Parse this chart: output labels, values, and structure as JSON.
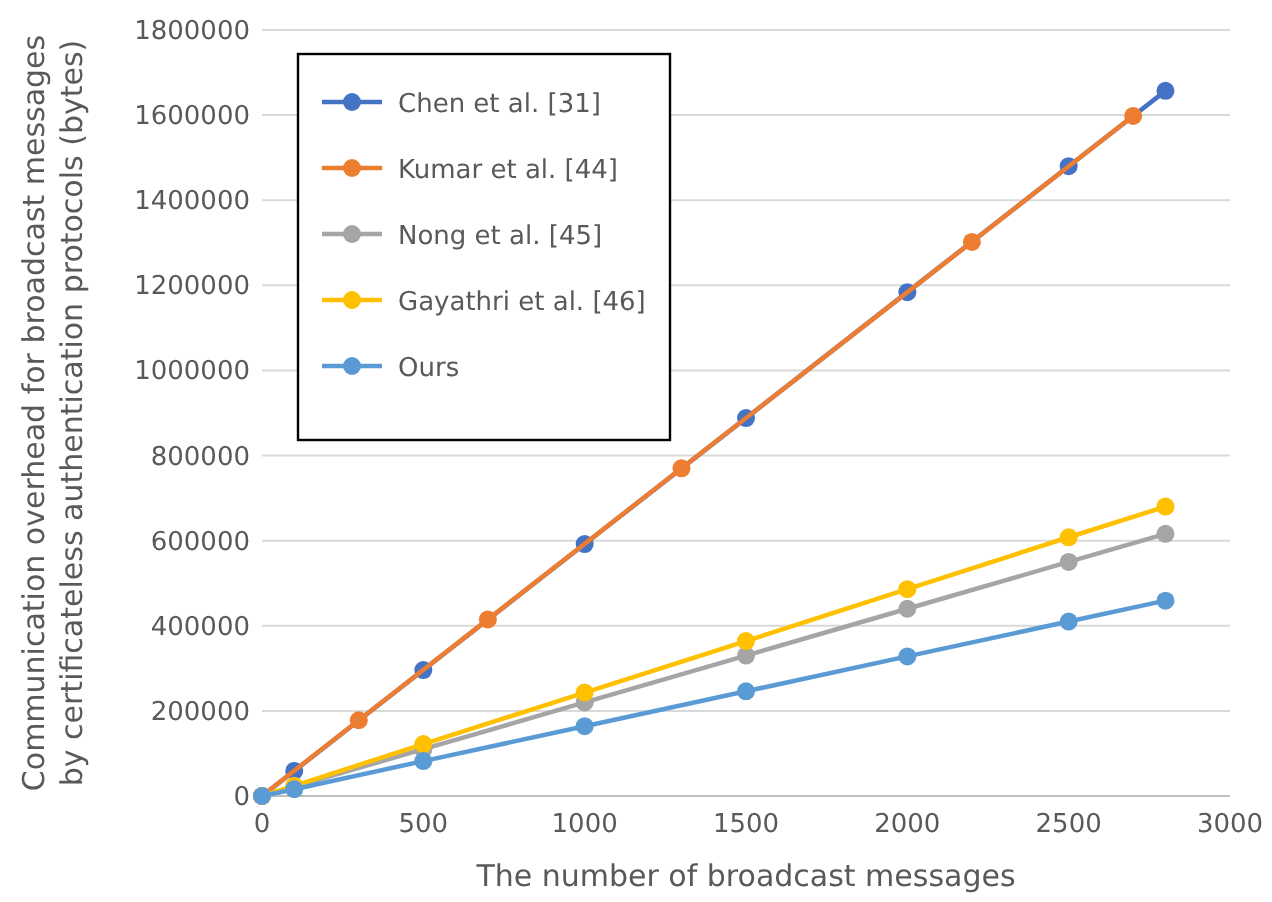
{
  "chart_data": {
    "type": "line",
    "xlabel": "The number of broadcast messages",
    "ylabel": "Communication overhead for broadcast messages\nby certificateless authentication protocols (bytes)",
    "xlim": [
      0,
      3000
    ],
    "xticks": [
      0,
      500,
      1000,
      1500,
      2000,
      2500,
      3000
    ],
    "ylim": [
      0,
      1800000
    ],
    "yticks": [
      0,
      200000,
      400000,
      600000,
      800000,
      1000000,
      1200000,
      1400000,
      1600000,
      1800000
    ],
    "grid": "y",
    "legend": "top left",
    "marker": "circle",
    "line_style": "solid",
    "series": [
      {
        "name": "Chen et al. [31]",
        "color": "#4472c4",
        "x": [
          0,
          100,
          500,
          1000,
          1500,
          2000,
          2500,
          2800
        ],
        "values": [
          0,
          59000,
          296000,
          592000,
          888000,
          1184000,
          1480000,
          1657000
        ]
      },
      {
        "name": "Kumar et al.  [44]",
        "color": "#ed7d31",
        "x": [
          0,
          300,
          700,
          1300,
          2200,
          2700
        ],
        "values": [
          0,
          178000,
          415000,
          770000,
          1302000,
          1598000
        ]
      },
      {
        "name": "Nong et al. [45]",
        "color": "#a5a5a5",
        "x": [
          0,
          100,
          500,
          1000,
          1500,
          2000,
          2500,
          2800
        ],
        "values": [
          0,
          22000,
          110000,
          220000,
          330000,
          440000,
          550000,
          616000
        ]
      },
      {
        "name": "Gayathri et al. [46]",
        "color": "#ffc000",
        "x": [
          0,
          100,
          500,
          1000,
          1500,
          2000,
          2500,
          2800
        ],
        "values": [
          0,
          24000,
          122000,
          243000,
          364000,
          486000,
          608000,
          680000
        ]
      },
      {
        "name": "Ours",
        "color": "#5b9bd5",
        "x": [
          0,
          100,
          500,
          1000,
          1500,
          2000,
          2500,
          2800
        ],
        "values": [
          0,
          16000,
          82000,
          164000,
          246000,
          328000,
          410000,
          459000
        ]
      }
    ]
  }
}
